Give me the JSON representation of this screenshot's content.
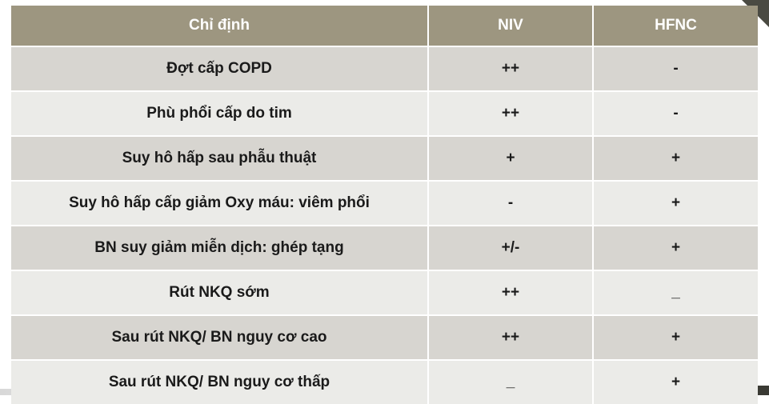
{
  "table": {
    "headers": [
      "Chỉ định",
      "NIV",
      "HFNC"
    ],
    "rows": [
      [
        "Đợt cấp COPD",
        "++",
        "-"
      ],
      [
        "Phù phổi cấp do tim",
        "++",
        "-"
      ],
      [
        "Suy hô hấp sau phẫu thuật",
        "+",
        "+"
      ],
      [
        "Suy hô hấp cấp giảm Oxy máu: viêm phổi",
        "-",
        "+"
      ],
      [
        "BN suy giảm miễn dịch: ghép tạng",
        "+/-",
        "+"
      ],
      [
        "Rút NKQ sớm",
        "++",
        "_"
      ],
      [
        "Sau rút NKQ/ BN nguy cơ cao",
        "++",
        "+"
      ],
      [
        "Sau rút NKQ/ BN nguy cơ thấp",
        "_",
        "+"
      ]
    ]
  }
}
